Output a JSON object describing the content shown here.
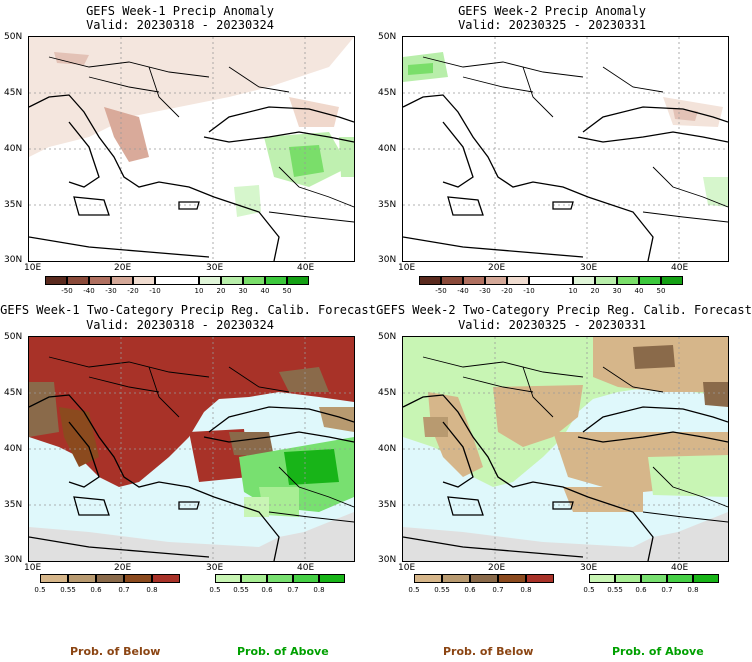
{
  "panels": [
    {
      "title1": "GEFS Week-1 Precip Anomaly",
      "title2": "Valid: 20230318 - 20230324",
      "lat_labels": [
        "50N",
        "45N",
        "40N",
        "35N",
        "30N"
      ],
      "lon_labels": [
        "10E",
        "20E",
        "30E",
        "40E"
      ],
      "kind": "anomaly"
    },
    {
      "title1": "GEFS Week-2 Precip Anomaly",
      "title2": "Valid: 20230325 - 20230331",
      "lat_labels": [
        "50N",
        "45N",
        "40N",
        "35N",
        "30N"
      ],
      "lon_labels": [
        "10E",
        "20E",
        "30E",
        "40E"
      ],
      "kind": "anomaly"
    },
    {
      "title1": "GEFS Week-1 Two-Category Precip Reg. Calib. Forecast",
      "title2": "Valid: 20230318 - 20230324",
      "lat_labels": [
        "50N",
        "45N",
        "40N",
        "35N",
        "30N"
      ],
      "lon_labels": [
        "10E",
        "20E",
        "30E",
        "40E"
      ],
      "kind": "prob"
    },
    {
      "title1": "GEFS Week-2 Two-Category Precip Reg. Calib. Forecast",
      "title2": "Valid: 20230325 - 20230331",
      "lat_labels": [
        "50N",
        "45N",
        "40N",
        "35N",
        "30N"
      ],
      "lon_labels": [
        "10E",
        "20E",
        "30E",
        "40E"
      ],
      "kind": "prob"
    }
  ],
  "anomaly_colorbar": {
    "ticks": [
      "-50",
      "-40",
      "-30",
      "-20",
      "-10",
      "10",
      "20",
      "30",
      "40",
      "50"
    ],
    "colors": [
      "#5a2a1e",
      "#8a4a3a",
      "#b07060",
      "#d4a898",
      "#f0dcd0",
      "#ffffff",
      "#e0f5d8",
      "#b8eeaa",
      "#7ade6a",
      "#3cc83c",
      "#14a014"
    ]
  },
  "below_colorbar": {
    "ticks": [
      "0.5",
      "0.55",
      "0.6",
      "0.7",
      "0.8"
    ],
    "colors": [
      "#d6b68a",
      "#b89a70",
      "#8a6a4a",
      "#8b4a1e",
      "#a83228"
    ]
  },
  "above_colorbar": {
    "ticks": [
      "0.5",
      "0.55",
      "0.6",
      "0.7",
      "0.8"
    ],
    "colors": [
      "#c8f5b4",
      "#a8ee94",
      "#78e070",
      "#46d046",
      "#18b418"
    ]
  },
  "legend_labels": {
    "below": "Prob. of Below",
    "above": "Prob. of Above"
  },
  "colors": {
    "below_text": "#8b4513",
    "above_text": "#00a000",
    "sea": "#dff8fb",
    "land_gray": "#e0e0e0"
  }
}
